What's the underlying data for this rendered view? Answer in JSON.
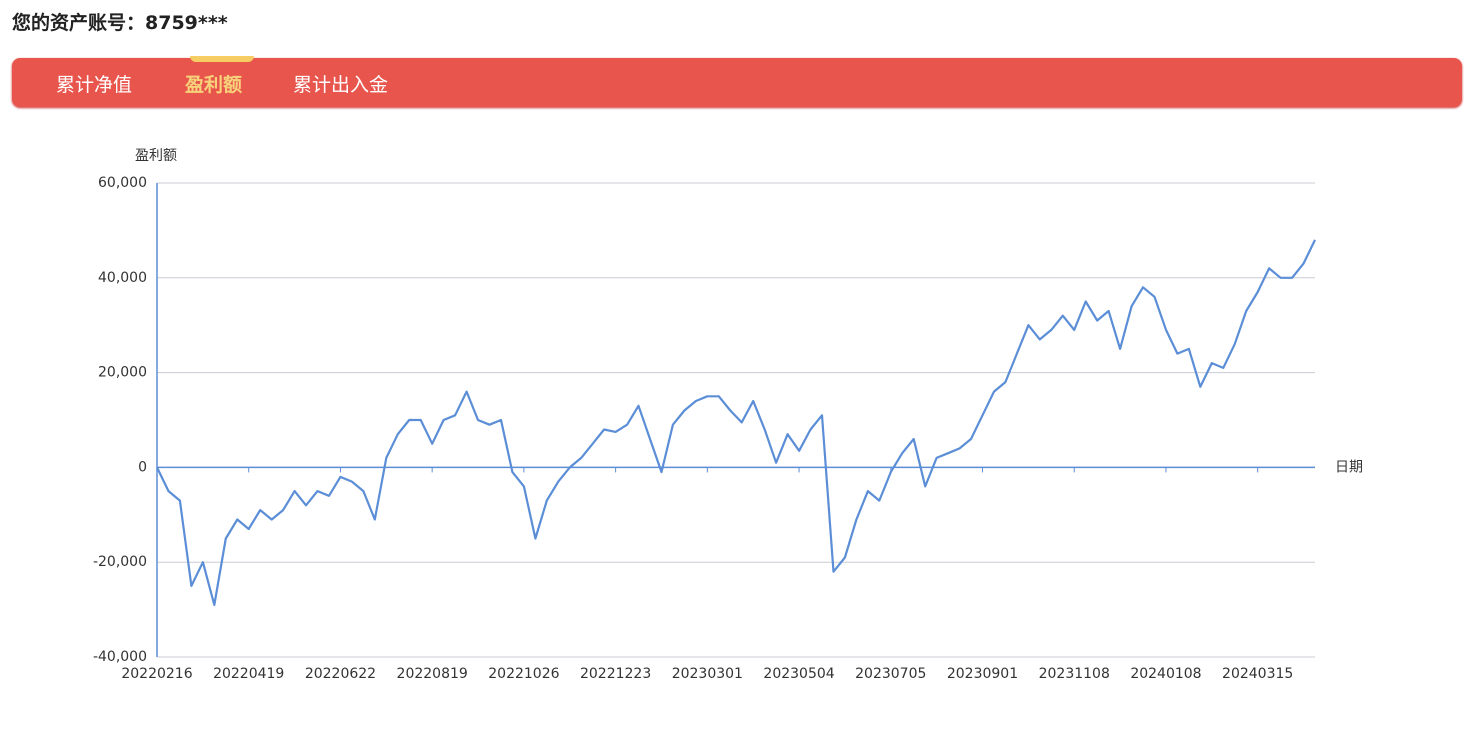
{
  "header": {
    "title": "您的资产账号：8759***"
  },
  "tabs": [
    "累计净值",
    "盈利额",
    "累计出入金"
  ],
  "chart_data": {
    "type": "line",
    "y_label": "盈利额",
    "x_label": "日期",
    "categories": [
      "20220216",
      null,
      null,
      null,
      null,
      null,
      null,
      null,
      "20220419",
      null,
      null,
      null,
      null,
      null,
      null,
      null,
      "20220622",
      null,
      null,
      null,
      null,
      null,
      null,
      null,
      "20220819",
      null,
      null,
      null,
      null,
      null,
      null,
      null,
      "20221026",
      null,
      null,
      null,
      null,
      null,
      null,
      null,
      "20221223",
      null,
      null,
      null,
      null,
      null,
      null,
      null,
      "20230301",
      null,
      null,
      null,
      null,
      null,
      null,
      null,
      "20230504",
      null,
      null,
      null,
      null,
      null,
      null,
      null,
      "20230705",
      null,
      null,
      null,
      null,
      null,
      null,
      null,
      "20230901",
      null,
      null,
      null,
      null,
      null,
      null,
      null,
      "20231108",
      null,
      null,
      null,
      null,
      null,
      null,
      null,
      "20240108",
      null,
      null,
      null,
      null,
      null,
      null,
      null,
      "20240315",
      null,
      null,
      null,
      null,
      null
    ],
    "values": [
      0,
      -5000,
      -7000,
      -25000,
      -20000,
      -29000,
      -15000,
      -11000,
      -13000,
      -9000,
      -11000,
      -9000,
      -5000,
      -8000,
      -5000,
      -6000,
      -2000,
      -3000,
      -5000,
      -11000,
      2000,
      7000,
      10000,
      10000,
      5000,
      10000,
      11000,
      16000,
      10000,
      9000,
      10000,
      -1000,
      -4000,
      -15000,
      -7000,
      -3000,
      0,
      2000,
      5000,
      8000,
      7500,
      9000,
      13000,
      6000,
      -1000,
      9000,
      12000,
      14000,
      15000,
      15000,
      12000,
      9500,
      14000,
      8000,
      1000,
      7000,
      3500,
      8000,
      11000,
      -22000,
      -19000,
      -11000,
      -5000,
      -7000,
      -1000,
      3000,
      6000,
      -4000,
      2000,
      3000,
      4000,
      6000,
      11000,
      16000,
      18000,
      24000,
      30000,
      27000,
      29000,
      32000,
      29000,
      35000,
      31000,
      33000,
      25000,
      34000,
      38000,
      36000,
      29000,
      24000,
      25000,
      17000,
      22000,
      21000,
      26000,
      33000,
      37000,
      42000,
      40000,
      40000,
      43000,
      48000
    ],
    "color": "#5b8ed6",
    "ylim": [
      -40000,
      60000
    ],
    "yticks": [
      {
        "value": -40000,
        "label": "-40,000"
      },
      {
        "value": -20000,
        "label": "-20,000"
      },
      0,
      {
        "value": 20000,
        "label": "20,000"
      },
      {
        "value": 40000,
        "label": "40,000"
      },
      {
        "value": 60000,
        "label": "60,000"
      }
    ],
    "grid": true
  }
}
